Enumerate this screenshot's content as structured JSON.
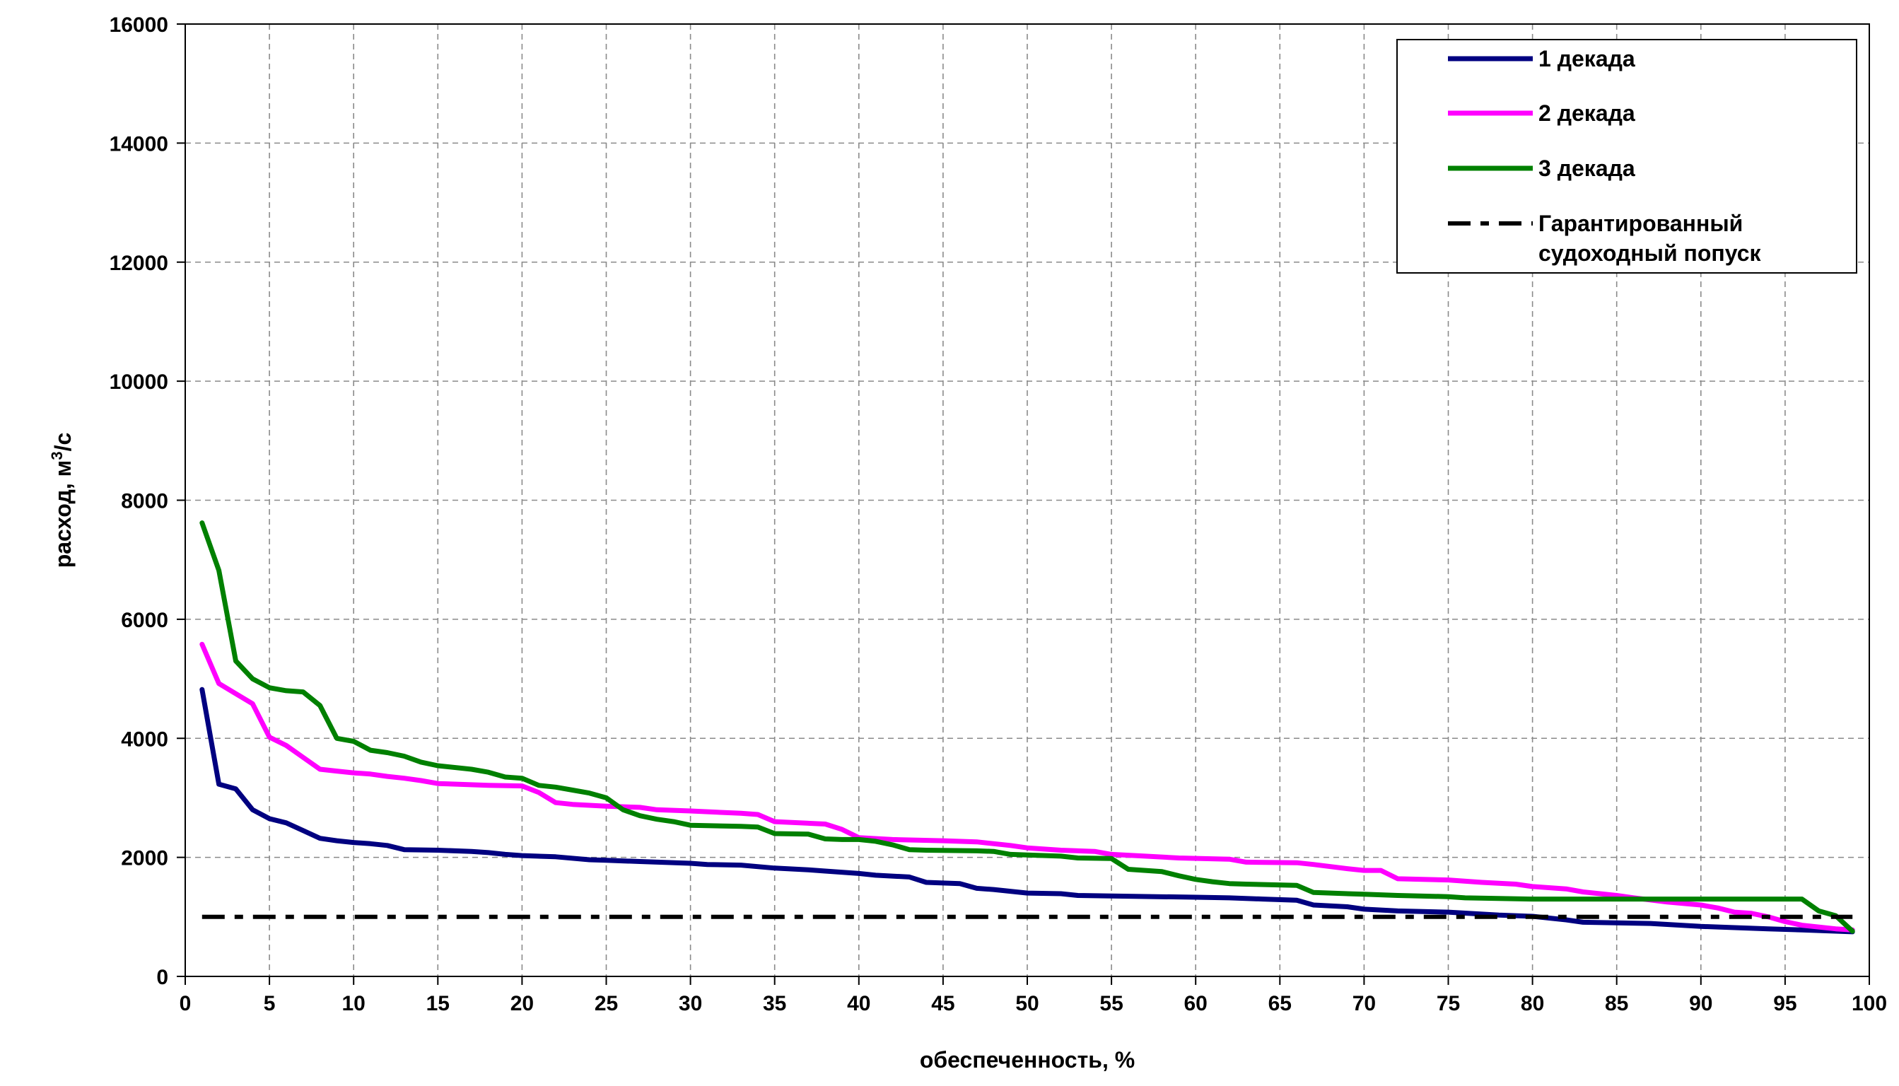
{
  "chart_data": {
    "type": "line",
    "title": "",
    "xlabel": "обеспеченность, %",
    "ylabel": {
      "prefix": "расход, м",
      "sup": "3",
      "suffix": "/с"
    },
    "xlim": [
      0,
      100
    ],
    "ylim": [
      0,
      16000
    ],
    "xticks": [
      0,
      5,
      10,
      15,
      20,
      25,
      30,
      35,
      40,
      45,
      50,
      55,
      60,
      65,
      70,
      75,
      80,
      85,
      90,
      95,
      100
    ],
    "yticks": [
      0,
      2000,
      4000,
      6000,
      8000,
      10000,
      12000,
      14000,
      16000
    ],
    "grid": true,
    "legend_position": "top-right",
    "series": [
      {
        "name": "1 декада",
        "color": "#000080",
        "style": "solid",
        "points": [
          [
            1,
            4820
          ],
          [
            2,
            3230
          ],
          [
            3,
            3150
          ],
          [
            4,
            2800
          ],
          [
            5,
            2650
          ],
          [
            6,
            2580
          ],
          [
            7,
            2450
          ],
          [
            8,
            2320
          ],
          [
            9,
            2280
          ],
          [
            10,
            2250
          ],
          [
            11,
            2230
          ],
          [
            12,
            2200
          ],
          [
            13,
            2130
          ],
          [
            15,
            2120
          ],
          [
            17,
            2100
          ],
          [
            18,
            2080
          ],
          [
            19,
            2050
          ],
          [
            20,
            2030
          ],
          [
            22,
            2010
          ],
          [
            24,
            1960
          ],
          [
            25,
            1950
          ],
          [
            27,
            1930
          ],
          [
            30,
            1900
          ],
          [
            31,
            1880
          ],
          [
            33,
            1870
          ],
          [
            35,
            1820
          ],
          [
            37,
            1790
          ],
          [
            38,
            1770
          ],
          [
            40,
            1730
          ],
          [
            41,
            1700
          ],
          [
            43,
            1670
          ],
          [
            44,
            1580
          ],
          [
            46,
            1560
          ],
          [
            47,
            1480
          ],
          [
            48,
            1460
          ],
          [
            50,
            1400
          ],
          [
            52,
            1390
          ],
          [
            53,
            1360
          ],
          [
            55,
            1350
          ],
          [
            60,
            1330
          ],
          [
            62,
            1320
          ],
          [
            64,
            1300
          ],
          [
            66,
            1280
          ],
          [
            67,
            1200
          ],
          [
            69,
            1170
          ],
          [
            70,
            1130
          ],
          [
            72,
            1100
          ],
          [
            75,
            1080
          ],
          [
            78,
            1030
          ],
          [
            80,
            1010
          ],
          [
            82,
            950
          ],
          [
            83,
            910
          ],
          [
            85,
            900
          ],
          [
            87,
            890
          ],
          [
            90,
            840
          ],
          [
            92,
            820
          ],
          [
            94,
            800
          ],
          [
            96,
            780
          ],
          [
            98,
            760
          ],
          [
            99,
            750
          ]
        ]
      },
      {
        "name": "2 декада",
        "color": "#ff00ff",
        "style": "solid",
        "points": [
          [
            1,
            5580
          ],
          [
            2,
            4920
          ],
          [
            3,
            4750
          ],
          [
            4,
            4580
          ],
          [
            5,
            4020
          ],
          [
            6,
            3880
          ],
          [
            7,
            3680
          ],
          [
            8,
            3480
          ],
          [
            9,
            3450
          ],
          [
            10,
            3420
          ],
          [
            11,
            3400
          ],
          [
            12,
            3360
          ],
          [
            13,
            3330
          ],
          [
            14,
            3290
          ],
          [
            15,
            3240
          ],
          [
            18,
            3210
          ],
          [
            20,
            3200
          ],
          [
            21,
            3090
          ],
          [
            22,
            2920
          ],
          [
            23,
            2890
          ],
          [
            25,
            2860
          ],
          [
            27,
            2840
          ],
          [
            28,
            2800
          ],
          [
            30,
            2780
          ],
          [
            33,
            2740
          ],
          [
            34,
            2720
          ],
          [
            35,
            2600
          ],
          [
            38,
            2560
          ],
          [
            39,
            2470
          ],
          [
            40,
            2330
          ],
          [
            42,
            2300
          ],
          [
            45,
            2280
          ],
          [
            47,
            2260
          ],
          [
            49,
            2200
          ],
          [
            50,
            2160
          ],
          [
            52,
            2120
          ],
          [
            54,
            2100
          ],
          [
            55,
            2050
          ],
          [
            57,
            2020
          ],
          [
            59,
            1990
          ],
          [
            62,
            1970
          ],
          [
            63,
            1920
          ],
          [
            66,
            1910
          ],
          [
            67,
            1880
          ],
          [
            69,
            1810
          ],
          [
            70,
            1780
          ],
          [
            71,
            1780
          ],
          [
            72,
            1640
          ],
          [
            75,
            1620
          ],
          [
            77,
            1580
          ],
          [
            79,
            1550
          ],
          [
            80,
            1510
          ],
          [
            82,
            1470
          ],
          [
            83,
            1420
          ],
          [
            85,
            1360
          ],
          [
            86,
            1320
          ],
          [
            88,
            1250
          ],
          [
            90,
            1200
          ],
          [
            91,
            1150
          ],
          [
            92,
            1080
          ],
          [
            93,
            1060
          ],
          [
            94,
            1000
          ],
          [
            95,
            920
          ],
          [
            96,
            860
          ],
          [
            98,
            800
          ],
          [
            99,
            780
          ]
        ]
      },
      {
        "name": "3 декада",
        "color": "#008000",
        "style": "solid",
        "points": [
          [
            1,
            7620
          ],
          [
            2,
            6820
          ],
          [
            3,
            5300
          ],
          [
            4,
            5000
          ],
          [
            5,
            4850
          ],
          [
            6,
            4800
          ],
          [
            7,
            4780
          ],
          [
            8,
            4550
          ],
          [
            9,
            4000
          ],
          [
            10,
            3950
          ],
          [
            11,
            3800
          ],
          [
            12,
            3760
          ],
          [
            13,
            3700
          ],
          [
            14,
            3600
          ],
          [
            15,
            3540
          ],
          [
            17,
            3480
          ],
          [
            18,
            3430
          ],
          [
            19,
            3350
          ],
          [
            20,
            3330
          ],
          [
            21,
            3210
          ],
          [
            22,
            3180
          ],
          [
            23,
            3130
          ],
          [
            24,
            3080
          ],
          [
            25,
            3000
          ],
          [
            26,
            2800
          ],
          [
            27,
            2700
          ],
          [
            28,
            2640
          ],
          [
            29,
            2600
          ],
          [
            30,
            2540
          ],
          [
            33,
            2520
          ],
          [
            34,
            2510
          ],
          [
            35,
            2400
          ],
          [
            37,
            2390
          ],
          [
            38,
            2310
          ],
          [
            39,
            2300
          ],
          [
            40,
            2300
          ],
          [
            41,
            2270
          ],
          [
            42,
            2210
          ],
          [
            43,
            2130
          ],
          [
            44,
            2120
          ],
          [
            47,
            2110
          ],
          [
            48,
            2100
          ],
          [
            49,
            2050
          ],
          [
            50,
            2040
          ],
          [
            52,
            2020
          ],
          [
            53,
            1990
          ],
          [
            55,
            1980
          ],
          [
            56,
            1800
          ],
          [
            58,
            1760
          ],
          [
            59,
            1690
          ],
          [
            60,
            1630
          ],
          [
            61,
            1590
          ],
          [
            62,
            1560
          ],
          [
            63,
            1550
          ],
          [
            66,
            1530
          ],
          [
            67,
            1410
          ],
          [
            70,
            1380
          ],
          [
            72,
            1360
          ],
          [
            75,
            1340
          ],
          [
            76,
            1320
          ],
          [
            80,
            1300
          ],
          [
            85,
            1300
          ],
          [
            90,
            1300
          ],
          [
            96,
            1300
          ],
          [
            97,
            1100
          ],
          [
            98,
            1020
          ],
          [
            99,
            760
          ]
        ]
      },
      {
        "name": "Гарантированный судоходный попуск",
        "legend_lines": [
          "Гарантированный",
          "судоходный попуск"
        ],
        "color": "#000000",
        "style": "dashdot",
        "points": [
          [
            1,
            1000
          ],
          [
            99,
            1000
          ]
        ]
      }
    ]
  }
}
